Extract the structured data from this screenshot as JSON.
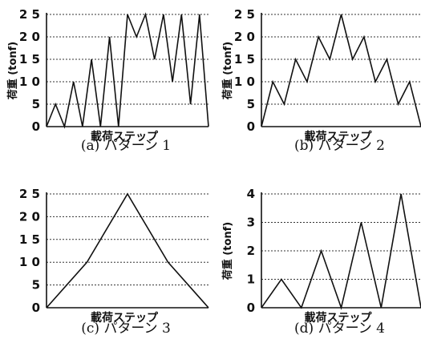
{
  "chart_data": [
    {
      "type": "line",
      "caption": "(a) パターン 1",
      "xlabel": "載荷ステップ",
      "ylabel": "荷重 (tonf)",
      "ylim": [
        0,
        25
      ],
      "yticks": [
        "2 5",
        "2 0",
        "1 5",
        "1 0",
        "5",
        "0"
      ],
      "values": [
        0,
        5,
        0,
        10,
        0,
        15,
        0,
        20,
        0,
        25,
        20,
        25,
        15,
        25,
        10,
        25,
        5,
        25,
        0
      ]
    },
    {
      "type": "line",
      "caption": "(b) パターン 2",
      "xlabel": "載荷ステップ",
      "ylabel": "荷重 (tonf)",
      "ylim": [
        0,
        25
      ],
      "yticks": [
        "2 5",
        "2 0",
        "1 5",
        "1 0",
        "5",
        "0"
      ],
      "values": [
        0,
        10,
        5,
        15,
        10,
        20,
        15,
        25,
        15,
        20,
        10,
        15,
        5,
        10,
        0
      ]
    },
    {
      "type": "line",
      "caption": "(c) パターン 3",
      "xlabel": "載荷ステップ",
      "ylabel": "",
      "ylim": [
        0,
        25
      ],
      "yticks": [
        "2 5",
        "2 0",
        "1 5",
        "1 0",
        "5",
        "0"
      ],
      "values": [
        0,
        10,
        25,
        10,
        0
      ]
    },
    {
      "type": "line",
      "caption": "(d) パターン 4",
      "xlabel": "載荷ステップ",
      "ylabel": "荷重 (tonf)",
      "ylim": [
        0,
        4
      ],
      "yticks": [
        "4",
        "3",
        "2",
        "1",
        "0"
      ],
      "values": [
        0,
        1,
        0,
        2,
        0,
        3,
        0,
        4,
        0
      ]
    }
  ]
}
